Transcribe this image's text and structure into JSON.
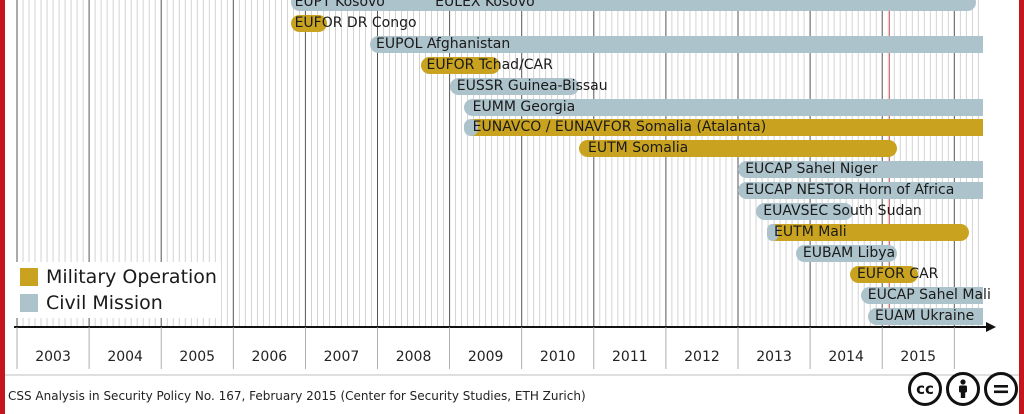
{
  "chart_data": {
    "type": "bar",
    "subtype": "timeline-gantt",
    "x_axis": {
      "ticks": [
        "2003",
        "2004",
        "2005",
        "2006",
        "2007",
        "2008",
        "2009",
        "2010",
        "2011",
        "2012",
        "2013",
        "2014",
        "2015"
      ],
      "range": [
        2002.5,
        2015.9
      ]
    },
    "grid": true,
    "colors": {
      "military": "#c9a31f",
      "civil": "#adc3cc",
      "border": "#c4161c",
      "today_line": "#e06060"
    },
    "today_marker": 2014.6,
    "missions": [
      {
        "name": "EUPT Kosovo",
        "type": "civil",
        "start": 2006.3,
        "end": 2008.3,
        "label_at": 2006.35,
        "clipped_top": true
      },
      {
        "name": "EULEX Kosovo",
        "type": "civil",
        "start": 2008.1,
        "end": 2015.8,
        "label_at": 2008.3,
        "clipped_top": true
      },
      {
        "name": "EUFOR DR Congo",
        "type": "military",
        "start": 2006.3,
        "end": 2006.8,
        "label_at": 2006.35
      },
      {
        "name": "EUPOL Afghanistan",
        "type": "civil",
        "start": 2007.4,
        "end": 2015.9,
        "label_at": 2007.48
      },
      {
        "name": "EUFOR Tchad/CAR",
        "type": "military",
        "start": 2008.1,
        "end": 2009.2,
        "label_at": 2008.18
      },
      {
        "name": "EUSSR Guinea-Bissau",
        "type": "civil",
        "start": 2008.5,
        "end": 2010.3,
        "label_at": 2008.6
      },
      {
        "name": "EUMM Georgia",
        "type": "civil",
        "start": 2008.7,
        "end": 2015.9,
        "label_at": 2008.82
      },
      {
        "name": "EUNAVCO / EUNAVFOR Somalia (Atalanta)",
        "type": "military",
        "start": 2008.7,
        "end": 2015.9,
        "label_at": 2008.82,
        "civil_prefix_end": 2008.9
      },
      {
        "name": "EUTM Somalia",
        "type": "military",
        "start": 2010.3,
        "end": 2014.7,
        "label_at": 2010.42
      },
      {
        "name": "EUCAP Sahel Niger",
        "type": "civil",
        "start": 2012.5,
        "end": 2015.9,
        "label_at": 2012.6
      },
      {
        "name": "EUCAP NESTOR Horn of Africa",
        "type": "civil",
        "start": 2012.5,
        "end": 2015.9,
        "label_at": 2012.6
      },
      {
        "name": "EUAVSEC South Sudan",
        "type": "civil",
        "start": 2012.75,
        "end": 2014.1,
        "label_at": 2012.85
      },
      {
        "name": "EUTM Mali",
        "type": "military",
        "start": 2012.9,
        "end": 2015.7,
        "label_at": 2013.0,
        "civil_prefix_end": 2013.05
      },
      {
        "name": "EUBAM Libya",
        "type": "civil",
        "start": 2013.3,
        "end": 2014.7,
        "label_at": 2013.4
      },
      {
        "name": "EUFOR CAR",
        "type": "military",
        "start": 2014.05,
        "end": 2015.0,
        "label_at": 2014.15
      },
      {
        "name": "EUCAP Sahel Mali",
        "type": "civil",
        "start": 2014.2,
        "end": 2015.9,
        "label_at": 2014.3
      },
      {
        "name": "EUAM Ukraine",
        "type": "civil",
        "start": 2014.3,
        "end": 2015.9,
        "label_at": 2014.4
      }
    ],
    "legend": {
      "position": "bottom-left",
      "items": [
        {
          "label": "Military Operation",
          "type": "military"
        },
        {
          "label": "Civil Mission",
          "type": "civil"
        }
      ]
    }
  },
  "footer": {
    "source": "CSS Analysis in Security Policy No. 167, February 2015 (Center for Security Studies, ETH Zurich)",
    "license_icons": [
      "cc",
      "by",
      "nd"
    ]
  }
}
